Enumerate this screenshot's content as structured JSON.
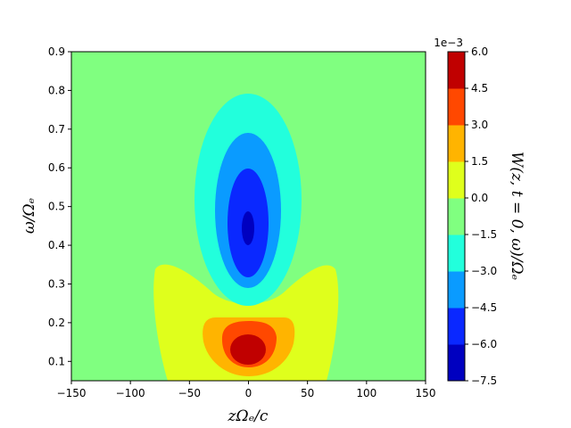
{
  "chart_data": {
    "type": "heatmap",
    "subtype": "filled-contour",
    "xlabel": "zΩₑ/c",
    "ylabel": "ω/Ωₑ",
    "colorbar_label": "W(z, t = 0, ω)/Ωₑ",
    "colorbar_offset_text": "1e−3",
    "xlim": [
      -150,
      150
    ],
    "ylim": [
      0.05,
      0.9
    ],
    "x_ticks": [
      -150,
      -100,
      -50,
      0,
      50,
      100,
      150
    ],
    "x_tick_labels": [
      "−150",
      "−100",
      "−50",
      "0",
      "50",
      "100",
      "150"
    ],
    "y_ticks": [
      0.1,
      0.2,
      0.3,
      0.4,
      0.5,
      0.6,
      0.7,
      0.8,
      0.9
    ],
    "y_tick_labels": [
      "0.1",
      "0.2",
      "0.3",
      "0.4",
      "0.5",
      "0.6",
      "0.7",
      "0.8",
      "0.9"
    ],
    "levels": [
      -7.5,
      -6.0,
      -4.5,
      -3.0,
      -1.5,
      0.0,
      1.5,
      3.0,
      4.5,
      6.0
    ],
    "level_labels": [
      "−7.5",
      "−6.0",
      "−4.5",
      "−3.0",
      "−1.5",
      "0.0",
      "1.5",
      "3.0",
      "4.5",
      "6.0"
    ],
    "level_colors": [
      "#0000c0",
      "#0a28ff",
      "#0a9bff",
      "#22ffdc",
      "#80ff80",
      "#dfff1c",
      "#ffb400",
      "#ff4800",
      "#c00000"
    ],
    "regions": [
      {
        "name": "negative-lobe",
        "center": [
          0,
          0.46
        ],
        "range": [
          -7.5,
          -1.5
        ],
        "x_extent": [
          -46,
          46
        ],
        "y_extent": [
          0.235,
          0.785
        ]
      },
      {
        "name": "positive-lobe",
        "center": [
          0,
          0.13
        ],
        "range": [
          0.0,
          6.0
        ],
        "x_extent": [
          -82,
          80
        ],
        "y_extent": [
          0.05,
          0.345
        ]
      }
    ]
  }
}
